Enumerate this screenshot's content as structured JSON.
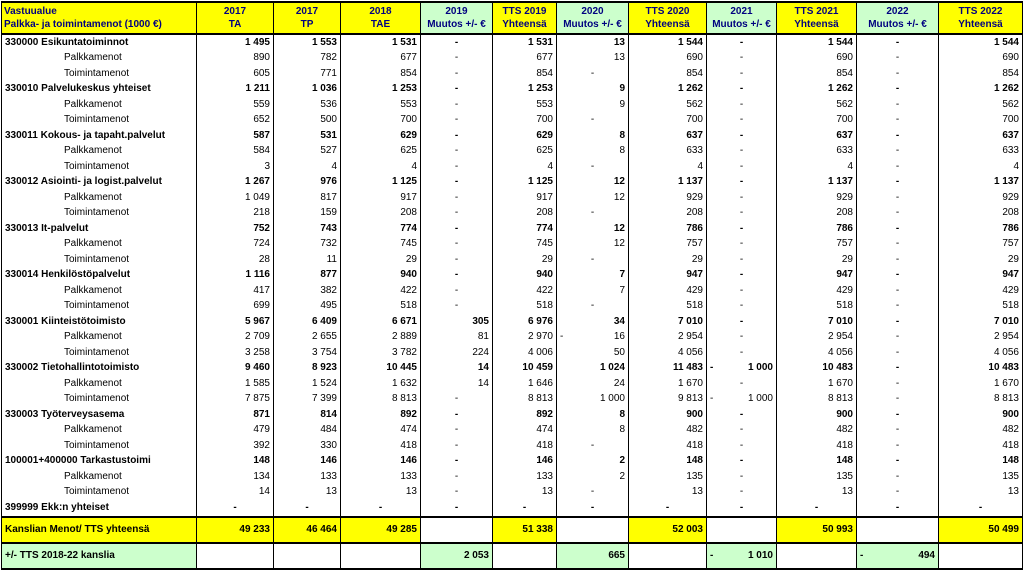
{
  "header": {
    "first_line1": "Vastuualue",
    "first_line2": "Palkka- ja toimintamenot (1000 €)",
    "cols": [
      {
        "l1": "2017",
        "l2": "TA",
        "green": false
      },
      {
        "l1": "2017",
        "l2": "TP",
        "green": false
      },
      {
        "l1": "2018",
        "l2": "TAE",
        "green": false
      },
      {
        "l1": "2019",
        "l2": "Muutos +/- €",
        "green": true
      },
      {
        "l1": "TTS 2019",
        "l2": "Yhteensä",
        "green": false
      },
      {
        "l1": "2020",
        "l2": "Muutos +/- €",
        "green": true
      },
      {
        "l1": "TTS 2020",
        "l2": "Yhteensä",
        "green": false
      },
      {
        "l1": "2021",
        "l2": "Muutos +/- €",
        "green": true
      },
      {
        "l1": "TTS 2021",
        "l2": "Yhteensä",
        "green": false
      },
      {
        "l1": "2022",
        "l2": "Muutos +/- €",
        "green": true
      },
      {
        "l1": "TTS 2022",
        "l2": "Yhteensä",
        "green": false
      }
    ]
  },
  "rows": [
    {
      "type": "group",
      "label": "330000 Esikuntatoiminnot",
      "v": [
        "1 495",
        "1 553",
        "1 531",
        "-",
        "1 531",
        "13",
        "1 544",
        "-",
        "1 544",
        "-",
        "1 544"
      ]
    },
    {
      "type": "sub",
      "label": "Palkkamenot",
      "v": [
        "890",
        "782",
        "677",
        "-",
        "677",
        "13",
        "690",
        "-",
        "690",
        "-",
        "690"
      ]
    },
    {
      "type": "sub",
      "label": "Toimintamenot",
      "v": [
        "605",
        "771",
        "854",
        "-",
        "854",
        "-",
        "854",
        "-",
        "854",
        "-",
        "854"
      ]
    },
    {
      "type": "group",
      "label": "330010 Palvelukeskus yhteiset",
      "v": [
        "1 211",
        "1 036",
        "1 253",
        "-",
        "1 253",
        "9",
        "1 262",
        "-",
        "1 262",
        "-",
        "1 262"
      ]
    },
    {
      "type": "sub",
      "label": "Palkkamenot",
      "v": [
        "559",
        "536",
        "553",
        "-",
        "553",
        "9",
        "562",
        "-",
        "562",
        "-",
        "562"
      ]
    },
    {
      "type": "sub",
      "label": "Toimintamenot",
      "v": [
        "652",
        "500",
        "700",
        "-",
        "700",
        "-",
        "700",
        "-",
        "700",
        "-",
        "700"
      ]
    },
    {
      "type": "group",
      "label": "330011 Kokous- ja tapaht.palvelut",
      "v": [
        "587",
        "531",
        "629",
        "-",
        "629",
        "8",
        "637",
        "-",
        "637",
        "-",
        "637"
      ]
    },
    {
      "type": "sub",
      "label": "Palkkamenot",
      "v": [
        "584",
        "527",
        "625",
        "-",
        "625",
        "8",
        "633",
        "-",
        "633",
        "-",
        "633"
      ]
    },
    {
      "type": "sub",
      "label": "Toimintamenot",
      "v": [
        "3",
        "4",
        "4",
        "-",
        "4",
        "-",
        "4",
        "-",
        "4",
        "-",
        "4"
      ]
    },
    {
      "type": "group",
      "label": "330012 Asiointi- ja logist.palvelut",
      "v": [
        "1 267",
        "976",
        "1 125",
        "-",
        "1 125",
        "12",
        "1 137",
        "-",
        "1 137",
        "-",
        "1 137"
      ]
    },
    {
      "type": "sub",
      "label": "Palkkamenot",
      "v": [
        "1 049",
        "817",
        "917",
        "-",
        "917",
        "12",
        "929",
        "-",
        "929",
        "-",
        "929"
      ]
    },
    {
      "type": "sub",
      "label": "Toimintamenot",
      "v": [
        "218",
        "159",
        "208",
        "-",
        "208",
        "-",
        "208",
        "-",
        "208",
        "-",
        "208"
      ]
    },
    {
      "type": "group",
      "label": "330013 It-palvelut",
      "v": [
        "752",
        "743",
        "774",
        "-",
        "774",
        "12",
        "786",
        "-",
        "786",
        "-",
        "786"
      ]
    },
    {
      "type": "sub",
      "label": "Palkkamenot",
      "v": [
        "724",
        "732",
        "745",
        "-",
        "745",
        "12",
        "757",
        "-",
        "757",
        "-",
        "757"
      ]
    },
    {
      "type": "sub",
      "label": "Toimintamenot",
      "v": [
        "28",
        "11",
        "29",
        "-",
        "29",
        "-",
        "29",
        "-",
        "29",
        "-",
        "29"
      ]
    },
    {
      "type": "group",
      "label": "330014 Henkilöstöpalvelut",
      "v": [
        "1 116",
        "877",
        "940",
        "-",
        "940",
        "7",
        "947",
        "-",
        "947",
        "-",
        "947"
      ]
    },
    {
      "type": "sub",
      "label": "Palkkamenot",
      "v": [
        "417",
        "382",
        "422",
        "-",
        "422",
        "7",
        "429",
        "-",
        "429",
        "-",
        "429"
      ]
    },
    {
      "type": "sub",
      "label": "Toimintamenot",
      "v": [
        "699",
        "495",
        "518",
        "-",
        "518",
        "-",
        "518",
        "-",
        "518",
        "-",
        "518"
      ]
    },
    {
      "type": "group",
      "label": "330001 Kiinteistötoimisto",
      "v": [
        "5 967",
        "6 409",
        "6 671",
        "305",
        "6 976",
        "34",
        "7 010",
        "-",
        "7 010",
        "-",
        "7 010"
      ]
    },
    {
      "type": "sub",
      "label": "Palkkamenot",
      "v": [
        "2 709",
        "2 655",
        "2 889",
        "81",
        "2 970",
        "16",
        "2 954",
        "-",
        "2 954",
        "-",
        "2 954"
      ],
      "neg": [
        5
      ]
    },
    {
      "type": "sub",
      "label": "Toimintamenot",
      "v": [
        "3 258",
        "3 754",
        "3 782",
        "224",
        "4 006",
        "50",
        "4 056",
        "-",
        "4 056",
        "-",
        "4 056"
      ]
    },
    {
      "type": "group",
      "label": "330002 Tietohallintotoimisto",
      "v": [
        "9 460",
        "8 923",
        "10 445",
        "14",
        "10 459",
        "1 024",
        "11 483",
        "1 000",
        "10 483",
        "-",
        "10 483"
      ],
      "neg": [
        7
      ]
    },
    {
      "type": "sub",
      "label": "Palkkamenot",
      "v": [
        "1 585",
        "1 524",
        "1 632",
        "14",
        "1 646",
        "24",
        "1 670",
        "-",
        "1 670",
        "-",
        "1 670"
      ]
    },
    {
      "type": "sub",
      "label": "Toimintamenot",
      "v": [
        "7 875",
        "7 399",
        "8 813",
        "-",
        "8 813",
        "1 000",
        "9 813",
        "1 000",
        "8 813",
        "-",
        "8 813"
      ],
      "neg": [
        7
      ]
    },
    {
      "type": "group",
      "label": "330003 Työterveysasema",
      "v": [
        "871",
        "814",
        "892",
        "-",
        "892",
        "8",
        "900",
        "-",
        "900",
        "-",
        "900"
      ]
    },
    {
      "type": "sub",
      "label": "Palkkamenot",
      "v": [
        "479",
        "484",
        "474",
        "-",
        "474",
        "8",
        "482",
        "-",
        "482",
        "-",
        "482"
      ]
    },
    {
      "type": "sub",
      "label": "Toimintamenot",
      "v": [
        "392",
        "330",
        "418",
        "-",
        "418",
        "-",
        "418",
        "-",
        "418",
        "-",
        "418"
      ]
    },
    {
      "type": "group",
      "label": "100001+400000 Tarkastustoimi",
      "v": [
        "148",
        "146",
        "146",
        "-",
        "146",
        "2",
        "148",
        "-",
        "148",
        "-",
        "148"
      ]
    },
    {
      "type": "sub",
      "label": "Palkkamenot",
      "v": [
        "134",
        "133",
        "133",
        "-",
        "133",
        "2",
        "135",
        "-",
        "135",
        "-",
        "135"
      ]
    },
    {
      "type": "sub",
      "label": "Toimintamenot",
      "v": [
        "14",
        "13",
        "13",
        "-",
        "13",
        "-",
        "13",
        "-",
        "13",
        "-",
        "13"
      ]
    },
    {
      "type": "group",
      "label": "399999 Ekk:n yhteiset",
      "v": [
        "-",
        "-",
        "-",
        "-",
        "-",
        "-",
        "-",
        "-",
        "-",
        "-",
        "-"
      ]
    }
  ],
  "total": {
    "label": "Kanslian Menot/ TTS yhteensä",
    "v": [
      "49 233",
      "46 464",
      "49 285",
      "",
      "51 338",
      "",
      "52 003",
      "",
      "50 993",
      "",
      "50 499"
    ]
  },
  "diff": {
    "label": "+/- TTS 2018-22 kanslia",
    "v": [
      "",
      "",
      "",
      "2 053",
      "",
      "665",
      "",
      "1 010",
      "",
      "494",
      ""
    ],
    "neg": [
      7,
      9
    ]
  }
}
